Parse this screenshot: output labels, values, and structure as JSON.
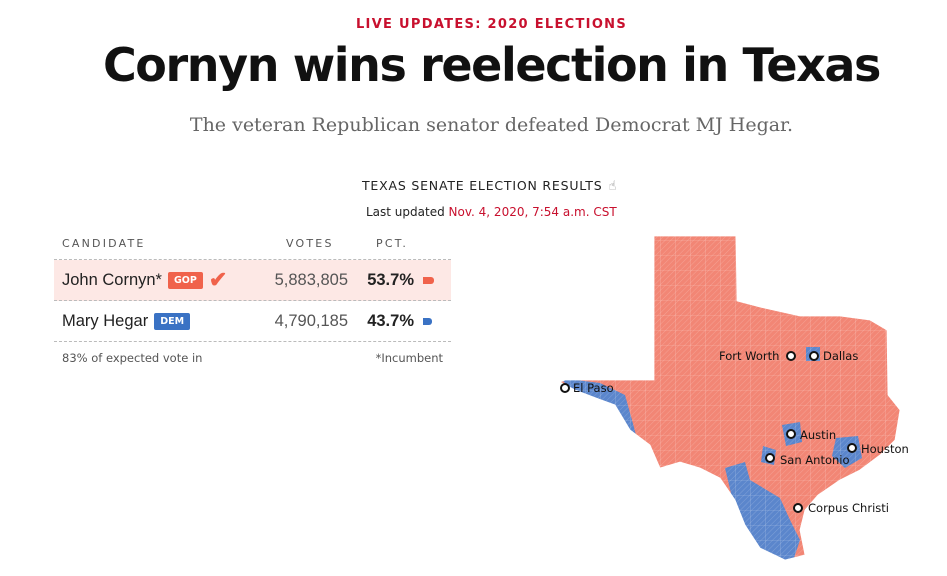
{
  "header": {
    "kicker": "LIVE UPDATES: 2020 ELECTIONS",
    "headline": "Cornyn wins reelection in Texas",
    "dek": "The veteran Republican senator defeated Democrat MJ Hegar."
  },
  "results": {
    "title": "TEXAS SENATE ELECTION RESULTS",
    "title_icon": "pointer-hand-icon",
    "updated_label": "Last updated",
    "updated_time": "Nov. 4, 2020, 7:54 a.m. CST",
    "columns": {
      "candidate": "CANDIDATE",
      "votes": "VOTES",
      "pct": "PCT."
    },
    "rows": [
      {
        "name": "John Cornyn*",
        "party": "GOP",
        "votes": "5,883,805",
        "pct": "53.7%",
        "pct_value": 53.7,
        "winner": true,
        "color": "#f0624b"
      },
      {
        "name": "Mary Hegar",
        "party": "DEM",
        "votes": "4,790,185",
        "pct": "43.7%",
        "pct_value": 43.7,
        "winner": false,
        "color": "#3a72c4"
      }
    ],
    "expected_vote": "83% of expected vote in",
    "incumbent_note": "*Incumbent"
  },
  "map": {
    "rep_color": "#f28675",
    "dem_color": "#5b86cc",
    "cities": [
      {
        "name": "Fort Worth"
      },
      {
        "name": "Dallas"
      },
      {
        "name": "El Paso"
      },
      {
        "name": "Austin"
      },
      {
        "name": "San Antonio"
      },
      {
        "name": "Houston"
      },
      {
        "name": "Corpus Christi"
      }
    ]
  }
}
